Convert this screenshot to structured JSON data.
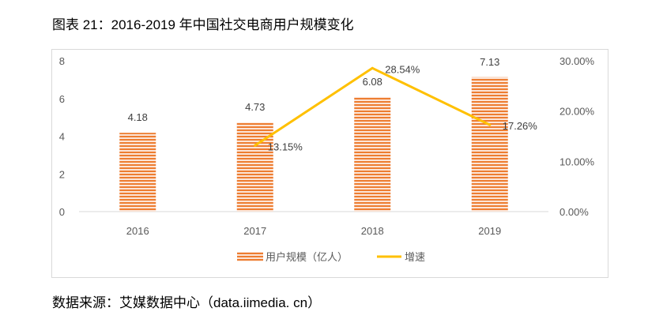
{
  "title": "图表 21：2016-2019 年中国社交电商用户规模变化",
  "source": "数据来源：艾媒数据中心（data.iimedia. cn）",
  "chart_data": {
    "type": "bar",
    "categories": [
      "2016",
      "2017",
      "2018",
      "2019"
    ],
    "series": [
      {
        "name": "用户规模（亿人）",
        "type": "bar",
        "axis": "left",
        "values": [
          4.18,
          4.73,
          6.08,
          7.13
        ],
        "labels": [
          "4.18",
          "4.73",
          "6.08",
          "7.13"
        ],
        "color": "#ED7D31",
        "pattern": "horizontal-stripes"
      },
      {
        "name": "增速",
        "type": "line",
        "axis": "right",
        "values": [
          null,
          13.15,
          28.54,
          17.26
        ],
        "labels": [
          "",
          "13.15%",
          "28.54%",
          "17.26%"
        ],
        "color": "#FFC000"
      }
    ],
    "y_left": {
      "lim": [
        0,
        8
      ],
      "ticks": [
        0,
        2,
        4,
        6,
        8
      ],
      "tick_labels": [
        "0",
        "2",
        "4",
        "6",
        "8"
      ]
    },
    "y_right": {
      "lim": [
        0,
        30
      ],
      "ticks": [
        0,
        10,
        20,
        30
      ],
      "tick_labels": [
        "0.00%",
        "10.00%",
        "20.00%",
        "30.00%"
      ]
    },
    "grid": false,
    "legend": "bottom"
  }
}
